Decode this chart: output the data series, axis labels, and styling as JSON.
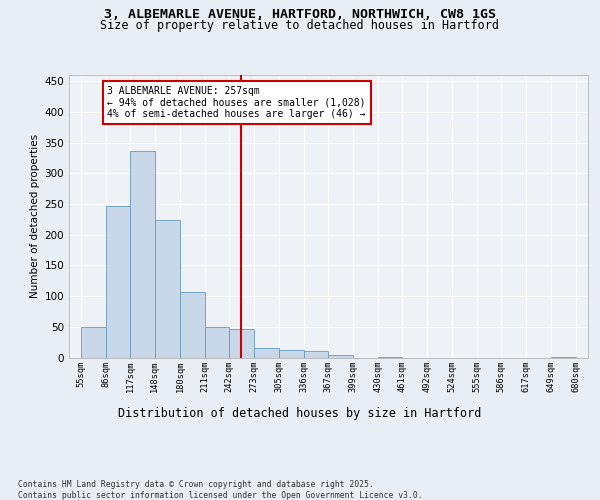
{
  "title_line1": "3, ALBEMARLE AVENUE, HARTFORD, NORTHWICH, CW8 1GS",
  "title_line2": "Size of property relative to detached houses in Hartford",
  "xlabel": "Distribution of detached houses by size in Hartford",
  "ylabel": "Number of detached properties",
  "footer_line1": "Contains HM Land Registry data © Crown copyright and database right 2025.",
  "footer_line2": "Contains public sector information licensed under the Open Government Licence v3.0.",
  "annotation_line1": "3 ALBEMARLE AVENUE: 257sqm",
  "annotation_line2": "← 94% of detached houses are smaller (1,028)",
  "annotation_line3": "4% of semi-detached houses are larger (46) →",
  "bar_edges": [
    55,
    86,
    117,
    148,
    180,
    211,
    242,
    273,
    305,
    336,
    367,
    399,
    430,
    461,
    492,
    524,
    555,
    586,
    617,
    649,
    680
  ],
  "bar_heights": [
    50,
    246,
    336,
    224,
    107,
    50,
    46,
    16,
    13,
    10,
    4,
    0,
    1,
    0,
    0,
    0,
    0,
    0,
    0,
    1
  ],
  "bar_color": "#c8d8e8",
  "bar_edge_color": "#6699bb",
  "vline_x": 257,
  "vline_color": "#cc0000",
  "annotation_box_color": "#cc0000",
  "bg_color": "#e8eef4",
  "plot_bg_color": "#eef2f6",
  "ylim": [
    0,
    460
  ],
  "yticks": [
    0,
    50,
    100,
    150,
    200,
    250,
    300,
    350,
    400,
    450
  ],
  "grid_color": "#ffffff",
  "figsize": [
    6.0,
    5.0
  ],
  "dpi": 100
}
